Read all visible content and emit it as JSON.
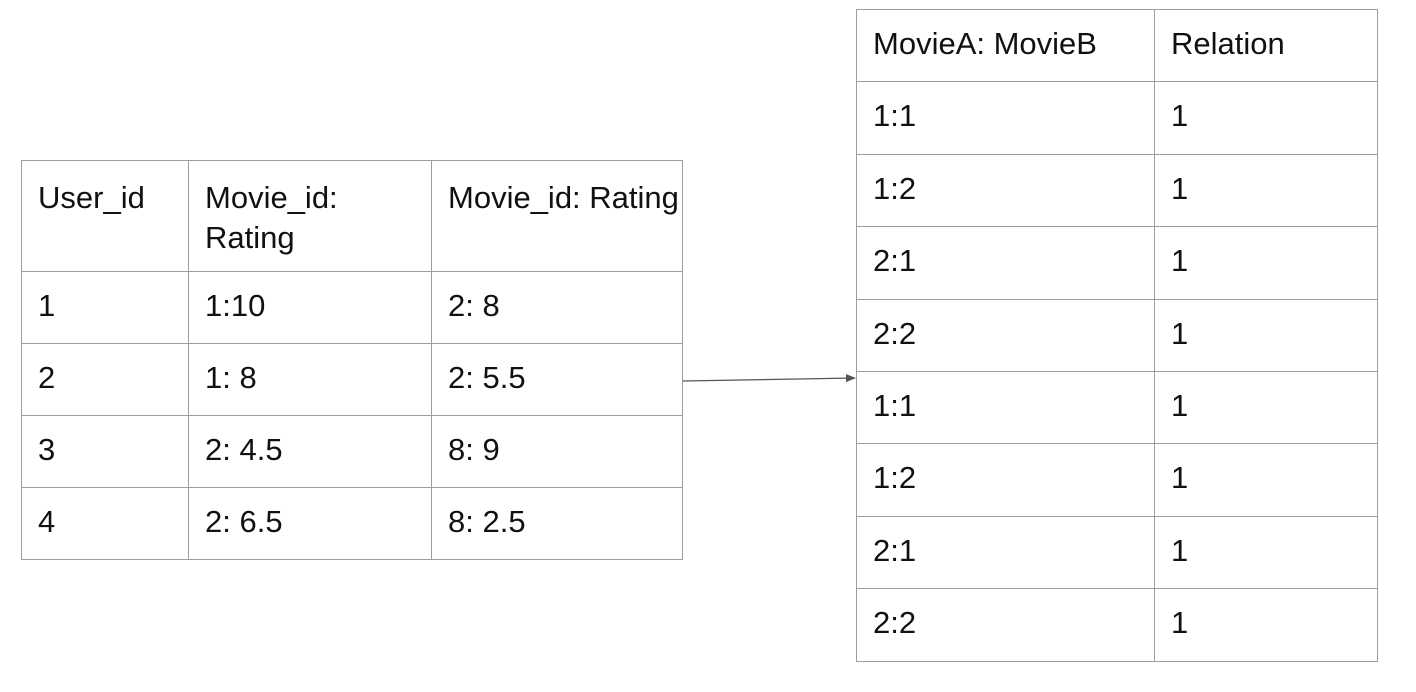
{
  "ratings_table": {
    "header": [
      "User_id",
      "Movie_id: Rating",
      "Movie_id: Rating"
    ],
    "rows": [
      [
        "1",
        "1:10",
        "2: 8"
      ],
      [
        "2",
        "1: 8",
        "2: 5.5"
      ],
      [
        "3",
        "2: 4.5",
        "8: 9"
      ],
      [
        "4",
        "2: 6.5",
        "8: 2.5"
      ]
    ]
  },
  "relations_table": {
    "header": [
      "MovieA: MovieB",
      "Relation"
    ],
    "rows": [
      [
        "1:1",
        "1"
      ],
      [
        "1:2",
        "1"
      ],
      [
        "2:1",
        "1"
      ],
      [
        "2:2",
        "1"
      ],
      [
        "1:1",
        "1"
      ],
      [
        "1:2",
        "1"
      ],
      [
        "2:1",
        "1"
      ],
      [
        "2:2",
        "1"
      ]
    ]
  },
  "colors": {
    "border": "#9e9e9e",
    "text": "#111111",
    "arrow": "#555555"
  }
}
